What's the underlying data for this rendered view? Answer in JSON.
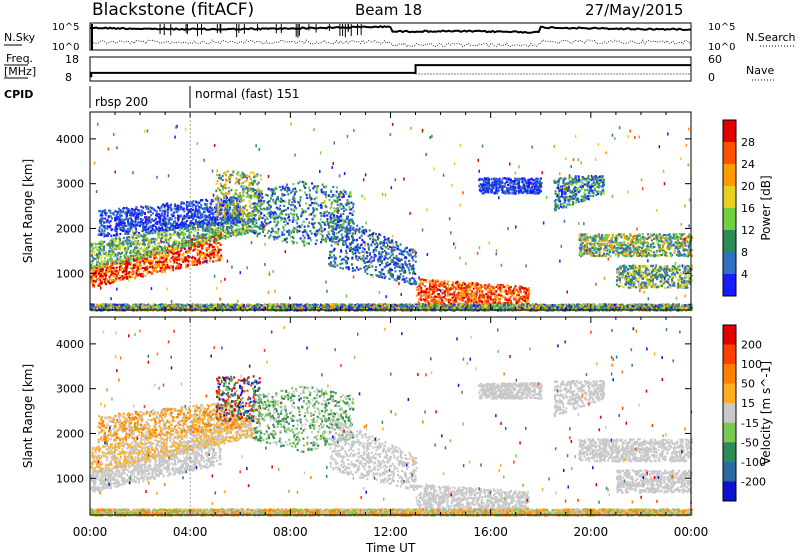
{
  "header": {
    "site": "Blackstone (fitACF)",
    "beam": "Beam 18",
    "date": "27/May/2015"
  },
  "strips": {
    "nsky_label": "N.Sky",
    "nsearch_label": "N.Search",
    "freq_label_1": "Freq.",
    "freq_label_2": "[MHz]",
    "nave_label": "Nave",
    "cpid_label": "CPID",
    "log_ticks": [
      "10^5",
      "10^0"
    ],
    "freq_ticks": [
      "18",
      "8"
    ],
    "nave_ticks": [
      "60",
      "0"
    ],
    "cpid_segments": [
      {
        "label": "rbsp 200",
        "start_hour": 0
      },
      {
        "label": "normal (fast) 151",
        "start_hour": 4
      }
    ],
    "frequency_steps": [
      {
        "from_hour": 0,
        "to_hour": 13,
        "mhz": 10.4
      },
      {
        "from_hour": 13,
        "to_hour": 24,
        "mhz": 14.6
      }
    ]
  },
  "chart_data": [
    {
      "type": "heatmap",
      "name": "power",
      "ylabel": "Slant Range [km]",
      "y_ticks": [
        1000,
        2000,
        3000,
        4000
      ],
      "ylim": [
        180,
        4600
      ],
      "colorbar_label": "Power [dB]",
      "colorbar_ticks": [
        4,
        8,
        12,
        16,
        20,
        24,
        28
      ],
      "colorbar_range": [
        0,
        32
      ],
      "colors": [
        "#1a1aff",
        "#3070c0",
        "#2e8b57",
        "#6fd040",
        "#e8d020",
        "#ff9a00",
        "#ff5000",
        "#e00000"
      ]
    },
    {
      "type": "heatmap",
      "name": "velocity",
      "ylabel": "Slant Range [km]",
      "y_ticks": [
        1000,
        2000,
        3000,
        4000
      ],
      "ylim": [
        180,
        4600
      ],
      "colorbar_label": "Velocity [m s^-1]",
      "colorbar_ticks": [
        200,
        100,
        50,
        15,
        -15,
        -50,
        -100,
        -200
      ],
      "colors": [
        "#1010d0",
        "#2a6aa0",
        "#2e8b57",
        "#7ac850",
        "#c8c8c8",
        "#ffb020",
        "#ff8000",
        "#ff4000",
        "#e00000"
      ],
      "xlabel": "Time UT",
      "x_ticks": [
        "00:00",
        "04:00",
        "08:00",
        "12:00",
        "16:00",
        "20:00",
        "00:00"
      ],
      "xlim_hours": [
        0,
        24
      ]
    }
  ]
}
